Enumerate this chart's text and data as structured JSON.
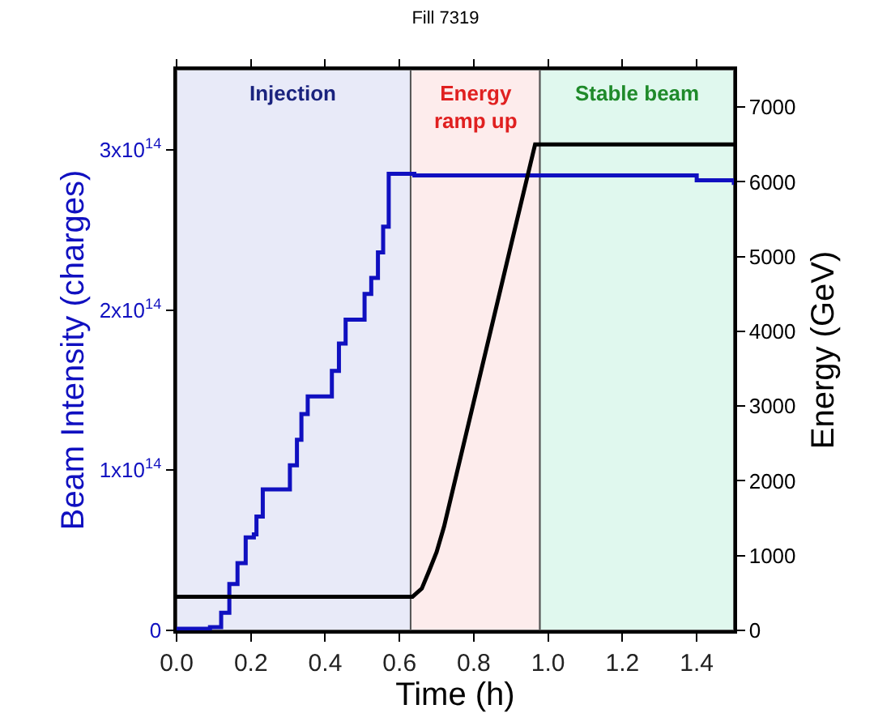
{
  "chart_data": {
    "type": "step",
    "title": "Fill 7319",
    "xlabel": "Time (h)",
    "ylabel": "Beam Intensity (charges)",
    "y2label": "Energy (GeV)",
    "xlim": [
      0,
      1.5
    ],
    "xticks": [
      {
        "value": 0,
        "label": "0.0"
      },
      0.2,
      0.4,
      0.6,
      0.8,
      {
        "value": 1,
        "label": "1.0"
      },
      1.2,
      1.4
    ],
    "ylim": [
      0,
      350000000000000.0
    ],
    "yticks": [
      {
        "value": 0,
        "label": "0"
      },
      {
        "value": 100000000000000.0,
        "label": "1x10$^{14}$"
      },
      {
        "value": 200000000000000.0,
        "label": "2x10$^{14}$"
      },
      {
        "value": 300000000000000.0,
        "label": "3x10$^{14}$"
      }
    ],
    "y2lim": [
      0,
      7500
    ],
    "y2ticks": [
      0,
      1000,
      2000,
      3000,
      4000,
      5000,
      6000,
      7000
    ],
    "grid": false,
    "series": [
      {
        "color": "#1010c0",
        "x": [
          0,
          0.09,
          0.12,
          0.142,
          0.164,
          0.186,
          0.208,
          0.215,
          0.232,
          0.305,
          0.324,
          0.336,
          0.353,
          0.418,
          0.437,
          0.455,
          0.506,
          0.524,
          0.542,
          0.556,
          0.571,
          0.64,
          1.27,
          1.4,
          1.5
        ],
        "values": [
          1000000000000.0,
          2000000000000.0,
          11000000000000.0,
          29000000000000.0,
          42000000000000.0,
          58000000000000.0,
          60000000000000.0,
          71000000000000.0,
          88000000000000.0,
          103000000000000.0,
          119000000000000.0,
          135000000000000.0,
          146000000000000.0,
          162000000000000.0,
          179000000000000.0,
          194000000000000.0,
          210000000000000.0,
          220000000000000.0,
          236000000000000.0,
          252000000000000.0,
          285000000000000.0,
          284000000000000.0,
          284000000000000.0,
          281000000000000.0,
          278000000000000.0
        ]
      },
      {
        "type": "line",
        "axis": "y2",
        "color": "#000000",
        "x": [
          0,
          0.635,
          0.66,
          0.68,
          0.7,
          0.72,
          0.8,
          0.9,
          0.965,
          1.5
        ],
        "values": [
          450,
          450,
          560,
          800,
          1050,
          1390,
          3060,
          5150,
          6500,
          6500
        ]
      }
    ],
    "bands": [
      {
        "axis": "x",
        "from": 0,
        "to": 0.63,
        "label": "Injection",
        "color": "#e8eaf8"
      },
      {
        "axis": "x",
        "from": 0.63,
        "to": 0.978,
        "label": "Energy\nramp up",
        "color": "#fdecec"
      },
      {
        "axis": "x",
        "from": 0.978,
        "to": 1.5,
        "label": "Stable beam",
        "color": "#e0f8ee"
      }
    ]
  }
}
